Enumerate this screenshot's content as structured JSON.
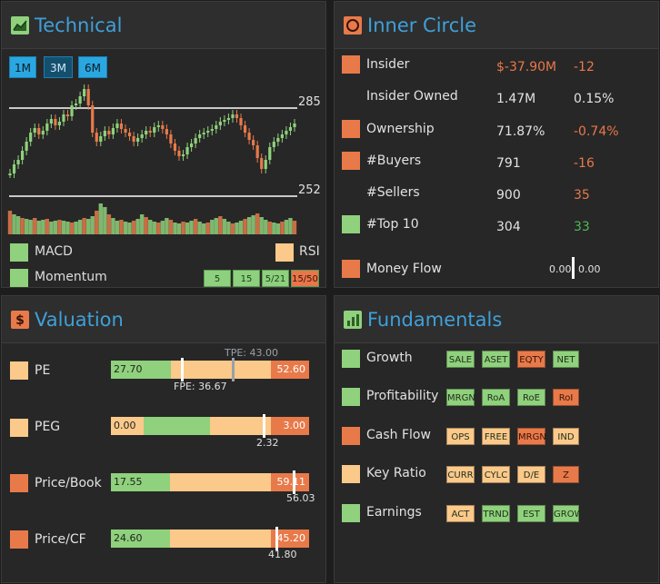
{
  "colors": {
    "green": "#8fd17c",
    "yellow": "#fbc98a",
    "orange": "#e87a4a",
    "accent": "#3fa0d9",
    "negative": "#e8784a",
    "positive": "#4cbb55"
  },
  "technical": {
    "title": "Technical",
    "icon": "area-chart-icon",
    "timeframes": [
      "1M",
      "3M",
      "6M"
    ],
    "selected_timeframe": "3M",
    "price_high": "285",
    "price_low": "252",
    "legend": {
      "macd": "MACD",
      "rsi": "RSI",
      "momentum": "Momentum"
    },
    "periods": [
      "5",
      "15",
      "5/21",
      "15/50"
    ]
  },
  "inner_circle": {
    "title": "Inner Circle",
    "icon": "circle-icon",
    "rows": [
      {
        "label": "Insider",
        "value": "$-37.90M",
        "change": "-12",
        "status": "orange",
        "value_style": "neg",
        "change_style": "neg"
      },
      {
        "label": "Insider Owned",
        "value": "1.47M",
        "change": "0.15%",
        "status": "none",
        "value_style": "",
        "change_style": ""
      },
      {
        "label": "Ownership",
        "value": "71.87%",
        "change": "-0.74%",
        "status": "orange",
        "value_style": "",
        "change_style": "neg"
      },
      {
        "label": "#Buyers",
        "value": "791",
        "change": "-16",
        "status": "orange",
        "value_style": "",
        "change_style": "neg"
      },
      {
        "label": "#Sellers",
        "value": "900",
        "change": "35",
        "status": "none",
        "value_style": "",
        "change_style": "neg"
      },
      {
        "label": "#Top 10",
        "value": "304",
        "change": "33",
        "status": "green",
        "value_style": "",
        "change_style": "pos"
      }
    ],
    "money_flow": {
      "label": "Money Flow",
      "left": "0.00",
      "right": "0.00",
      "status": "orange"
    }
  },
  "valuation": {
    "title": "Valuation",
    "icon": "dollar-icon",
    "rows": [
      {
        "label": "PE",
        "status": "yellow",
        "left": "27.70",
        "right": "52.60",
        "marker": "FPE: 36.67",
        "marker2": "TPE: 43.00"
      },
      {
        "label": "PEG",
        "status": "yellow",
        "left": "0.00",
        "right": "3.00",
        "marker": "2.32"
      },
      {
        "label": "Price/Book",
        "status": "orange",
        "left": "17.55",
        "right": "59.11",
        "marker": "56.03"
      },
      {
        "label": "Price/CF",
        "status": "orange",
        "left": "24.60",
        "right": "45.20",
        "marker": "41.80"
      }
    ]
  },
  "fundamentals": {
    "title": "Fundamentals",
    "icon": "bar-chart-icon",
    "rows": [
      {
        "label": "Growth",
        "status": "green",
        "tags": [
          [
            "SALE",
            "green"
          ],
          [
            "ASET",
            "green"
          ],
          [
            "EQTY",
            "orange"
          ],
          [
            "NET",
            "green"
          ]
        ]
      },
      {
        "label": "Profitability",
        "status": "green",
        "tags": [
          [
            "MRGN",
            "green"
          ],
          [
            "RoA",
            "green"
          ],
          [
            "RoE",
            "green"
          ],
          [
            "RoI",
            "orange"
          ]
        ]
      },
      {
        "label": "Cash Flow",
        "status": "orange",
        "tags": [
          [
            "OPS",
            "yellow"
          ],
          [
            "FREE",
            "yellow"
          ],
          [
            "MRGN",
            "orange"
          ],
          [
            "IND",
            "yellow"
          ]
        ]
      },
      {
        "label": "Key Ratio",
        "status": "yellow",
        "tags": [
          [
            "CURR",
            "yellow"
          ],
          [
            "CYLC",
            "yellow"
          ],
          [
            "D/E",
            "yellow"
          ],
          [
            "Z",
            "orange"
          ]
        ]
      },
      {
        "label": "Earnings",
        "status": "green",
        "tags": [
          [
            "ACT",
            "yellow"
          ],
          [
            "TRND",
            "green"
          ],
          [
            "EST",
            "green"
          ],
          [
            "GROW",
            "green"
          ]
        ]
      }
    ]
  }
}
